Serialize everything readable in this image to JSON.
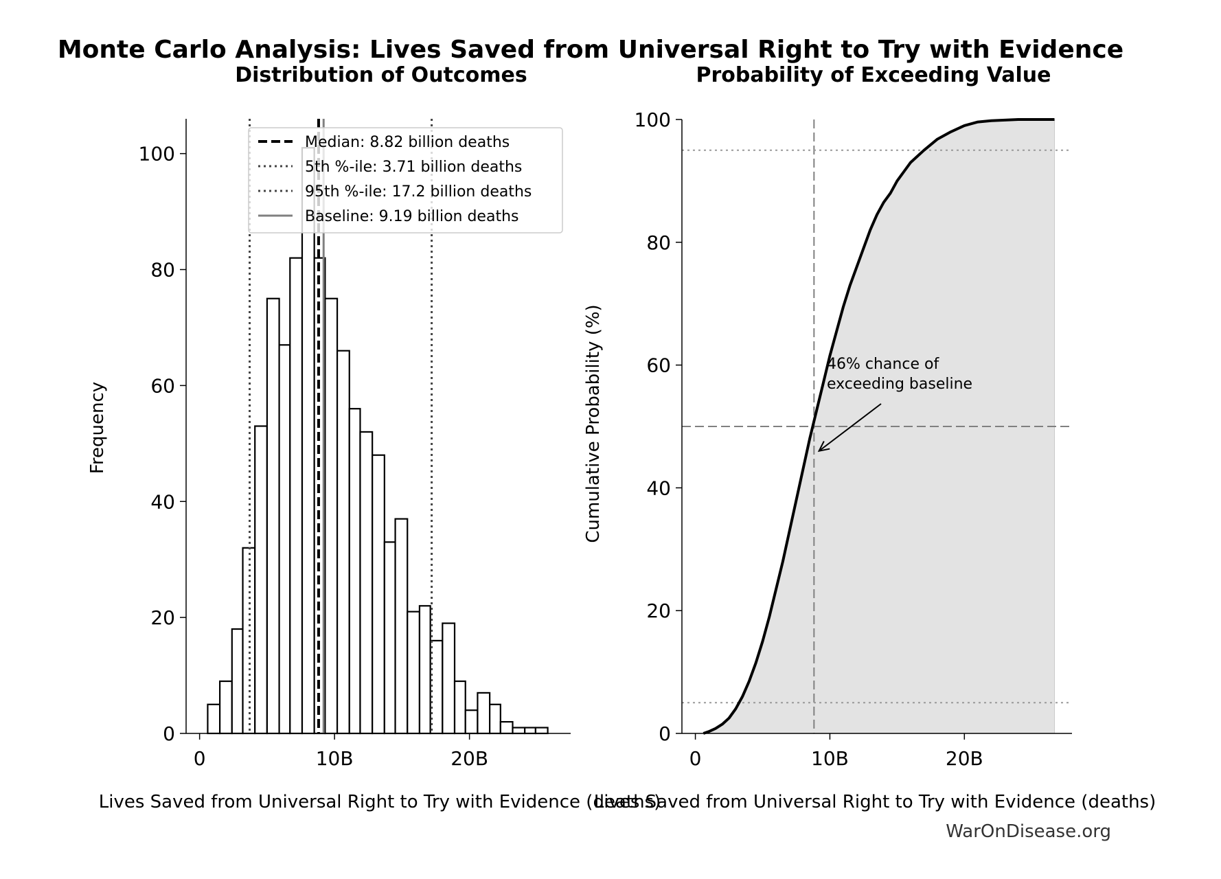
{
  "page": {
    "title": "Monte Carlo Analysis: Lives Saved from Universal Right to Try with Evidence",
    "footer": "WarOnDisease.org"
  },
  "chart_data": [
    {
      "type": "bar",
      "title": "Distribution of Outcomes",
      "xlabel": "Lives Saved from Universal Right to Try with Evidence (deaths)",
      "ylabel": "Frequency",
      "xlim": [
        -1.0,
        27.5
      ],
      "ylim": [
        0,
        106
      ],
      "x_ticks": [
        0,
        10,
        20
      ],
      "x_tick_labels": [
        "0",
        "10B",
        "20B"
      ],
      "y_ticks": [
        0,
        20,
        40,
        60,
        80,
        100
      ],
      "y_tick_labels": [
        "0",
        "20",
        "40",
        "60",
        "80",
        "100"
      ],
      "x_units": "billion deaths",
      "bin_edges": [
        0.6,
        1.5,
        2.4,
        3.2,
        4.1,
        5.0,
        5.9,
        6.7,
        7.6,
        8.5,
        9.3,
        10.2,
        11.1,
        11.9,
        12.8,
        13.7,
        14.5,
        15.4,
        16.3,
        17.1,
        18.0,
        18.9,
        19.7,
        20.6,
        21.5,
        22.3,
        23.2,
        24.1,
        24.9,
        25.8,
        26.7
      ],
      "bin_counts": [
        5,
        9,
        18,
        32,
        53,
        75,
        67,
        82,
        101,
        82,
        75,
        66,
        56,
        52,
        48,
        33,
        37,
        21,
        22,
        16,
        19,
        9,
        4,
        7,
        5,
        2,
        1,
        1,
        1,
        0,
        1
      ],
      "reference_lines": [
        {
          "label": "Median: 8.82 billion deaths",
          "x": 8.82,
          "style": "dashed",
          "color": "#000000"
        },
        {
          "label": "5th %-ile: 3.71 billion deaths",
          "x": 3.71,
          "style": "dotted",
          "color": "#444444"
        },
        {
          "label": "95th %-ile: 17.2 billion deaths",
          "x": 17.2,
          "style": "dotted",
          "color": "#444444"
        },
        {
          "label": "Baseline: 9.19 billion deaths",
          "x": 9.19,
          "style": "solid",
          "color": "#808080"
        }
      ],
      "legend_position": "top-right",
      "grid": false
    },
    {
      "type": "line",
      "title": "Probability of Exceeding Value",
      "xlabel": "Lives Saved from Universal Right to Try with Evidence (deaths)",
      "ylabel": "Cumulative Probability (%)",
      "xlim": [
        -1.0,
        28.0
      ],
      "ylim": [
        0,
        100
      ],
      "x_ticks": [
        0,
        10,
        20
      ],
      "x_tick_labels": [
        "0",
        "10B",
        "20B"
      ],
      "y_ticks": [
        0,
        20,
        40,
        60,
        80,
        100
      ],
      "y_tick_labels": [
        "0",
        "20",
        "40",
        "60",
        "80",
        "100"
      ],
      "x": [
        0.6,
        1.0,
        1.5,
        2.0,
        2.5,
        3.0,
        3.5,
        4.0,
        4.5,
        5.0,
        5.5,
        6.0,
        6.5,
        7.0,
        7.5,
        8.0,
        8.5,
        9.0,
        9.5,
        10.0,
        10.5,
        11.0,
        11.5,
        12.0,
        12.5,
        13.0,
        13.5,
        14.0,
        14.5,
        15.0,
        15.5,
        16.0,
        16.5,
        17.0,
        18.0,
        19.0,
        20.0,
        21.0,
        22.0,
        23.0,
        24.0,
        25.0,
        26.7
      ],
      "y": [
        0,
        0.3,
        0.8,
        1.5,
        2.5,
        4.0,
        6.0,
        8.5,
        11.5,
        15.0,
        19.0,
        23.5,
        28.0,
        33.0,
        38.0,
        43.0,
        48.0,
        52.5,
        57.0,
        61.5,
        65.5,
        69.5,
        73.0,
        76.0,
        79.0,
        82.0,
        84.5,
        86.5,
        88.0,
        90.0,
        91.5,
        93.0,
        94.0,
        95.0,
        96.8,
        98.0,
        99.0,
        99.6,
        99.8,
        99.9,
        100,
        100,
        100
      ],
      "reference_lines": [
        {
          "orientation": "vertical",
          "x": 8.82,
          "style": "dashed",
          "color": "#808080"
        },
        {
          "orientation": "horizontal",
          "y": 50,
          "style": "dashed",
          "color": "#808080"
        },
        {
          "orientation": "horizontal",
          "y": 5,
          "style": "dotted",
          "color": "#999999"
        },
        {
          "orientation": "horizontal",
          "y": 95,
          "style": "dotted",
          "color": "#999999"
        }
      ],
      "annotation": {
        "lines": [
          "46% chance of",
          "exceeding baseline"
        ],
        "arrow_to": {
          "x": 9.19,
          "y": 46
        }
      },
      "fill_under_curve": true,
      "fill_color": "#e3e3e3",
      "grid": false
    }
  ]
}
